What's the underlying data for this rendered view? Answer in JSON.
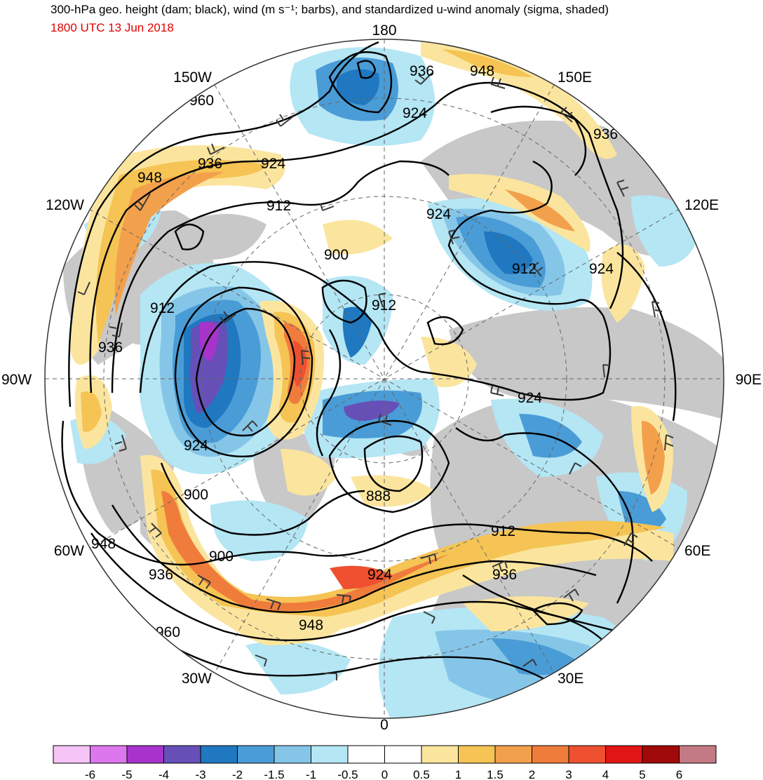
{
  "header": {
    "title": "300-hPa geo. height (dam; black), wind (m s⁻¹; barbs), and standardized u-wind anomaly (sigma, shaded)",
    "valid_time": "1800 UTC 13 Jun 2018",
    "valid_time_color": "#e00000"
  },
  "longitude_labels": [
    {
      "text": "180",
      "lon": 180
    },
    {
      "text": "150E",
      "lon": 150
    },
    {
      "text": "120E",
      "lon": 120
    },
    {
      "text": "90E",
      "lon": 90
    },
    {
      "text": "60E",
      "lon": 60
    },
    {
      "text": "30E",
      "lon": 30
    },
    {
      "text": "0",
      "lon": 0
    },
    {
      "text": "30W",
      "lon": -30
    },
    {
      "text": "60W",
      "lon": -60
    },
    {
      "text": "90W",
      "lon": -90
    },
    {
      "text": "120W",
      "lon": -120
    },
    {
      "text": "150W",
      "lon": -150
    }
  ],
  "height_labels": [
    "960",
    "948",
    "936",
    "924",
    "912",
    "900",
    "888"
  ],
  "colorbar": {
    "ticks": [
      "-6",
      "-5",
      "-4",
      "-3",
      "-2",
      "-1.5",
      "-1",
      "-0.5",
      "0",
      "0.5",
      "1",
      "1.5",
      "2",
      "3",
      "4",
      "5",
      "6"
    ],
    "colors": [
      "#f6c4f6",
      "#dd77ee",
      "#a833cc",
      "#6650b8",
      "#1f78c0",
      "#4a9cd6",
      "#85c6e8",
      "#b4e6f4",
      "#ffffff",
      "#ffffff",
      "#fbe59e",
      "#f5c454",
      "#f3a04c",
      "#f07c3c",
      "#ee5030",
      "#e21515",
      "#a10a0a",
      "#c37a84"
    ]
  },
  "map_colors": {
    "land": "#c8c8c8",
    "contour": "#000000",
    "barb": "#3a3a3a",
    "grid": "#666666"
  }
}
